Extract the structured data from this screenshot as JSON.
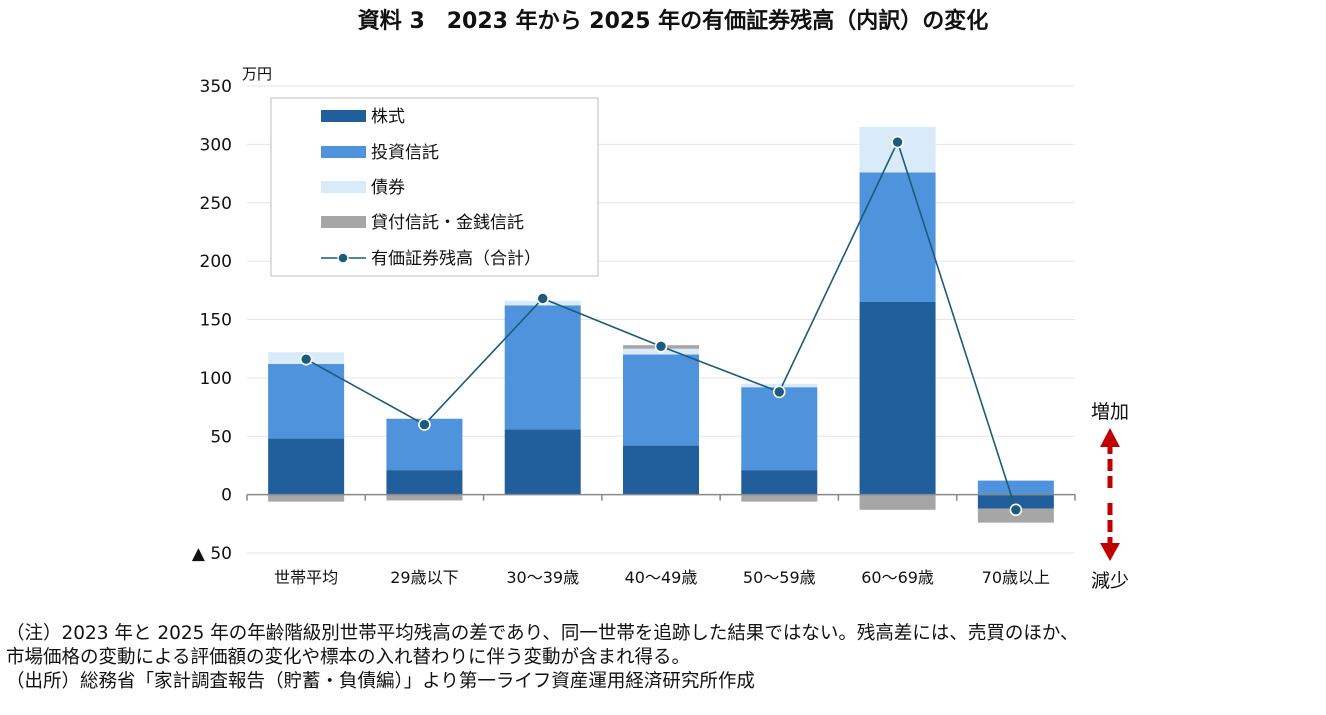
{
  "chart_data": {
    "type": "bar",
    "stacked": true,
    "title": "資料 3　2023 年から 2025 年の有価証券残高（内訳）の変化",
    "ylabel": "万円",
    "ylim": [
      -50,
      350
    ],
    "yticks": [
      -50,
      0,
      50,
      100,
      150,
      200,
      250,
      300,
      350
    ],
    "ytick_labels": [
      "▲ 50",
      "0",
      "50",
      "100",
      "150",
      "200",
      "250",
      "300",
      "350"
    ],
    "grid": true,
    "legend_position": "top-left",
    "categories": [
      "世帯平均",
      "29歳以下",
      "30～39歳",
      "40～49歳",
      "50～59歳",
      "60～69歳",
      "70歳以上"
    ],
    "series": [
      {
        "name": "株式",
        "color": "#205f9c",
        "values": [
          48,
          21,
          56,
          42,
          21,
          165,
          -12
        ]
      },
      {
        "name": "投資信託",
        "color": "#4e93db",
        "values": [
          64,
          44,
          106,
          78,
          71,
          111,
          12
        ]
      },
      {
        "name": "債券",
        "color": "#d9eaf8",
        "values": [
          10,
          0,
          4,
          5,
          3,
          39,
          0
        ]
      },
      {
        "name": "貸付信託・金銭信託",
        "color": "#a6a6a6",
        "values": [
          -6,
          -5,
          0,
          3,
          -6,
          -13,
          -12
        ]
      }
    ],
    "line": {
      "name": "有価証券残高（合計）",
      "color": "#1c5b7c",
      "values": [
        116,
        60,
        168,
        127,
        88,
        302,
        -13
      ]
    },
    "annotations": {
      "up": "増加",
      "down": "減少"
    }
  },
  "notes": [
    "（注）2023 年と 2025 年の年齢階級別世帯平均残高の差であり、同一世帯を追跡した結果ではない。残高差には、売買のほか、",
    "市場価格の変動による評価額の変化や標本の入れ替わりに伴う変動が含まれ得る。",
    "（出所）総務省「家計調査報告（貯蓄・負債編）」より第一ライフ資産運用経済研究所作成"
  ]
}
